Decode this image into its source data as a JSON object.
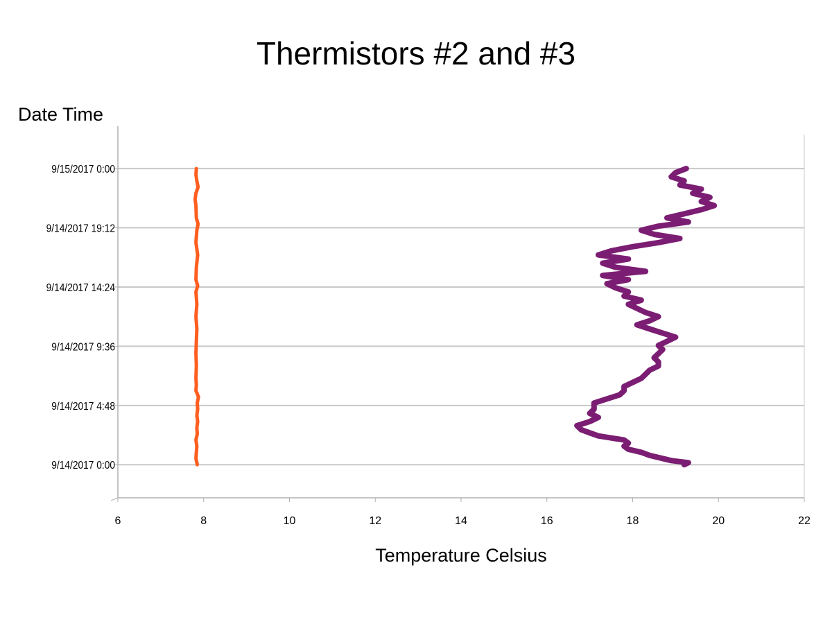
{
  "chart_data": {
    "type": "line",
    "title": "Thermistors #2 and #3",
    "xlabel": "Temperature Celsius",
    "ylabel": "Date Time",
    "xlim": [
      6,
      22
    ],
    "x_ticks": [
      6,
      8,
      10,
      12,
      14,
      16,
      18,
      20,
      22
    ],
    "ylim": [
      "9/13/2017 21:19",
      "9/15/2017 3:26"
    ],
    "y_ticks": [
      "9/14/2017 0:00",
      "9/14/2017 4:48",
      "9/14/2017 9:36",
      "9/14/2017 14:24",
      "9/14/2017 19:12",
      "9/15/2017 0:00"
    ],
    "grid": {
      "horizontal": true,
      "vertical": false
    },
    "orientation": "temperature on horizontal axis, date time on vertical axis",
    "colors": {
      "series_1": "#ff5e1f",
      "series_2": "#7b1e73",
      "grid": "#c8c8c8",
      "axis": "#b0b0b0"
    },
    "series": [
      {
        "color": "#ff5e1f",
        "points": [
          [
            "9/14/2017 0:00",
            7.85
          ],
          [
            "9/14/2017 0:30",
            7.82
          ],
          [
            "9/14/2017 1:00",
            7.83
          ],
          [
            "9/14/2017 1:30",
            7.84
          ],
          [
            "9/14/2017 2:00",
            7.82
          ],
          [
            "9/14/2017 2:30",
            7.85
          ],
          [
            "9/14/2017 3:00",
            7.84
          ],
          [
            "9/14/2017 3:30",
            7.86
          ],
          [
            "9/14/2017 4:00",
            7.84
          ],
          [
            "9/14/2017 4:30",
            7.86
          ],
          [
            "9/14/2017 5:00",
            7.85
          ],
          [
            "9/14/2017 5:30",
            7.88
          ],
          [
            "9/14/2017 6:00",
            7.82
          ],
          [
            "9/14/2017 6:30",
            7.83
          ],
          [
            "9/14/2017 7:00",
            7.82
          ],
          [
            "9/14/2017 8:00",
            7.83
          ],
          [
            "9/14/2017 9:00",
            7.82
          ],
          [
            "9/14/2017 10:00",
            7.83
          ],
          [
            "9/14/2017 11:00",
            7.84
          ],
          [
            "9/14/2017 12:00",
            7.82
          ],
          [
            "9/14/2017 13:00",
            7.84
          ],
          [
            "9/14/2017 14:00",
            7.82
          ],
          [
            "9/14/2017 14:30",
            7.86
          ],
          [
            "9/14/2017 15:00",
            7.82
          ],
          [
            "9/14/2017 16:00",
            7.83
          ],
          [
            "9/14/2017 17:00",
            7.86
          ],
          [
            "9/14/2017 18:00",
            7.82
          ],
          [
            "9/14/2017 19:00",
            7.84
          ],
          [
            "9/14/2017 19:30",
            7.87
          ],
          [
            "9/14/2017 20:00",
            7.83
          ],
          [
            "9/14/2017 21:00",
            7.82
          ],
          [
            "9/14/2017 21:30",
            7.8
          ],
          [
            "9/14/2017 22:00",
            7.82
          ],
          [
            "9/14/2017 22:30",
            7.87
          ],
          [
            "9/14/2017 23:00",
            7.84
          ],
          [
            "9/14/2017 23:30",
            7.82
          ],
          [
            "9/15/2017 0:00",
            7.83
          ]
        ]
      },
      {
        "color": "#7b1e73",
        "points": [
          [
            "9/14/2017 0:00",
            19.2
          ],
          [
            "9/14/2017 0:10",
            19.3
          ],
          [
            "9/14/2017 0:20",
            18.9
          ],
          [
            "9/14/2017 0:30",
            18.7
          ],
          [
            "9/14/2017 0:45",
            18.4
          ],
          [
            "9/14/2017 1:00",
            18.2
          ],
          [
            "9/14/2017 1:15",
            17.9
          ],
          [
            "9/14/2017 1:30",
            17.8
          ],
          [
            "9/14/2017 1:45",
            17.9
          ],
          [
            "9/14/2017 2:00",
            17.8
          ],
          [
            "9/14/2017 2:10",
            17.5
          ],
          [
            "9/14/2017 2:20",
            17.2
          ],
          [
            "9/14/2017 2:35",
            17.0
          ],
          [
            "9/14/2017 2:50",
            16.8
          ],
          [
            "9/14/2017 3:10",
            16.7
          ],
          [
            "9/14/2017 3:30",
            17.0
          ],
          [
            "9/14/2017 3:50",
            17.2
          ],
          [
            "9/14/2017 4:10",
            17.0
          ],
          [
            "9/14/2017 4:30",
            17.1
          ],
          [
            "9/14/2017 5:00",
            17.1
          ],
          [
            "9/14/2017 5:20",
            17.4
          ],
          [
            "9/14/2017 5:40",
            17.7
          ],
          [
            "9/14/2017 6:00",
            17.8
          ],
          [
            "9/14/2017 6:20",
            17.8
          ],
          [
            "9/14/2017 6:40",
            18.0
          ],
          [
            "9/14/2017 7:00",
            18.2
          ],
          [
            "9/14/2017 7:20",
            18.3
          ],
          [
            "9/14/2017 7:40",
            18.4
          ],
          [
            "9/14/2017 8:00",
            18.6
          ],
          [
            "9/14/2017 8:20",
            18.6
          ],
          [
            "9/14/2017 8:40",
            18.5
          ],
          [
            "9/14/2017 9:00",
            18.6
          ],
          [
            "9/14/2017 9:20",
            18.7
          ],
          [
            "9/14/2017 9:40",
            18.6
          ],
          [
            "9/14/2017 10:00",
            18.8
          ],
          [
            "9/14/2017 10:20",
            19.0
          ],
          [
            "9/14/2017 10:40",
            18.7
          ],
          [
            "9/14/2017 11:00",
            18.4
          ],
          [
            "9/14/2017 11:20",
            18.1
          ],
          [
            "9/14/2017 11:40",
            18.4
          ],
          [
            "9/14/2017 12:00",
            18.6
          ],
          [
            "9/14/2017 12:20",
            18.3
          ],
          [
            "9/14/2017 12:40",
            18.1
          ],
          [
            "9/14/2017 13:00",
            17.9
          ],
          [
            "9/14/2017 13:20",
            18.2
          ],
          [
            "9/14/2017 13:40",
            17.8
          ],
          [
            "9/14/2017 14:00",
            17.9
          ],
          [
            "9/14/2017 14:20",
            17.6
          ],
          [
            "9/14/2017 14:40",
            17.4
          ],
          [
            "9/14/2017 15:00",
            17.9
          ],
          [
            "9/14/2017 15:20",
            17.3
          ],
          [
            "9/14/2017 15:40",
            18.3
          ],
          [
            "9/14/2017 16:00",
            17.6
          ],
          [
            "9/14/2017 16:20",
            17.3
          ],
          [
            "9/14/2017 16:40",
            17.9
          ],
          [
            "9/14/2017 17:00",
            17.2
          ],
          [
            "9/14/2017 17:20",
            17.5
          ],
          [
            "9/14/2017 17:40",
            18.0
          ],
          [
            "9/14/2017 18:00",
            18.6
          ],
          [
            "9/14/2017 18:20",
            19.1
          ],
          [
            "9/14/2017 18:40",
            18.5
          ],
          [
            "9/14/2017 19:00",
            18.2
          ],
          [
            "9/14/2017 19:20",
            18.6
          ],
          [
            "9/14/2017 19:40",
            19.3
          ],
          [
            "9/14/2017 20:00",
            18.8
          ],
          [
            "9/14/2017 20:20",
            19.2
          ],
          [
            "9/14/2017 20:40",
            19.6
          ],
          [
            "9/14/2017 21:00",
            19.9
          ],
          [
            "9/14/2017 21:20",
            19.6
          ],
          [
            "9/14/2017 21:40",
            19.8
          ],
          [
            "9/14/2017 22:00",
            19.4
          ],
          [
            "9/14/2017 22:20",
            19.6
          ],
          [
            "9/14/2017 22:40",
            19.1
          ],
          [
            "9/14/2017 23:00",
            19.2
          ],
          [
            "9/14/2017 23:20",
            18.9
          ],
          [
            "9/14/2017 23:40",
            19.0
          ],
          [
            "9/15/2017 0:00",
            19.25
          ]
        ]
      }
    ]
  }
}
